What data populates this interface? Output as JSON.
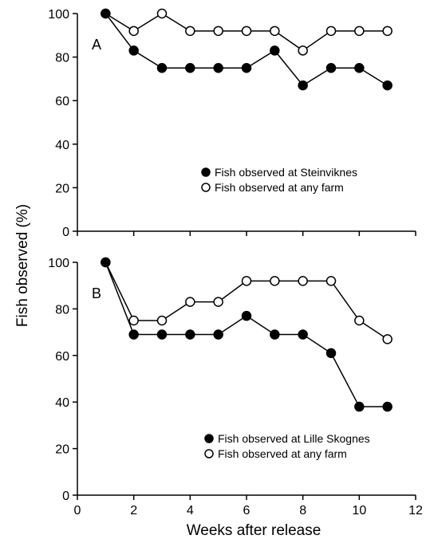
{
  "chart_data": {
    "type": "line",
    "ylabel": "Fish observed (%)",
    "xlabel": "Weeks after release",
    "xlim": [
      0,
      12
    ],
    "xticks": [
      0,
      2,
      4,
      6,
      8,
      10,
      12
    ],
    "panels": [
      {
        "label": "A",
        "ylim": [
          0,
          100
        ],
        "yticks": [
          0,
          20,
          40,
          60,
          80,
          100
        ],
        "x": [
          1,
          2,
          3,
          4,
          5,
          6,
          7,
          8,
          9,
          10,
          11
        ],
        "series": [
          {
            "name": "Fish observed at Steinviknes",
            "marker": "filled",
            "values": [
              100,
              83,
              75,
              75,
              75,
              75,
              83,
              67,
              75,
              75,
              67
            ]
          },
          {
            "name": "Fish observed at any farm",
            "marker": "open",
            "values": [
              100,
              92,
              100,
              92,
              92,
              92,
              92,
              83,
              92,
              92,
              92
            ]
          }
        ]
      },
      {
        "label": "B",
        "ylim": [
          0,
          100
        ],
        "yticks": [
          0,
          20,
          40,
          60,
          80,
          100
        ],
        "x": [
          1,
          2,
          3,
          4,
          5,
          6,
          7,
          8,
          9,
          10,
          11
        ],
        "series": [
          {
            "name": "Fish observed at Lille Skognes",
            "marker": "filled",
            "values": [
              100,
              69,
              69,
              69,
              69,
              77,
              69,
              69,
              61,
              38,
              38
            ]
          },
          {
            "name": "Fish observed at any farm",
            "marker": "open",
            "values": [
              100,
              75,
              75,
              83,
              83,
              92,
              92,
              92,
              92,
              75,
              67
            ]
          }
        ]
      }
    ]
  }
}
